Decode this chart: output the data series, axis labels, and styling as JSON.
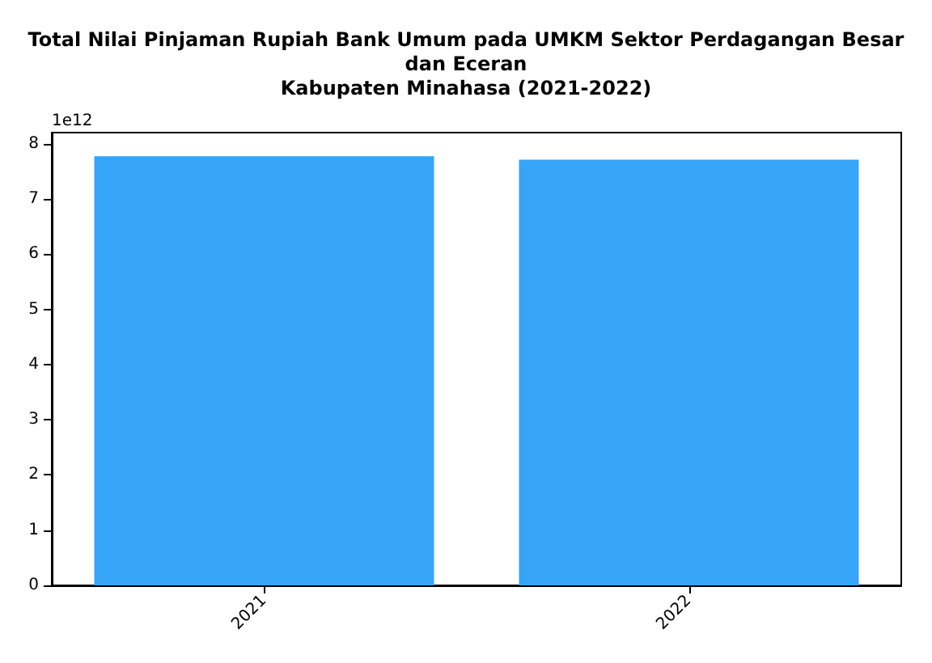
{
  "chart_data": {
    "type": "bar",
    "title": "Total Nilai Pinjaman Rupiah Bank Umum pada UMKM Sektor Perdagangan Besar\ndan Eceran\nKabupaten Minahasa (2021-2022)",
    "categories": [
      "2021",
      "2022"
    ],
    "values": [
      7.77,
      7.71
    ],
    "color": "#36a5f8",
    "ylim": [
      0,
      8.2
    ],
    "yticks": [
      0,
      1,
      2,
      3,
      4,
      5,
      6,
      7,
      8
    ],
    "annotations": [
      "1e12"
    ],
    "grid": false
  }
}
